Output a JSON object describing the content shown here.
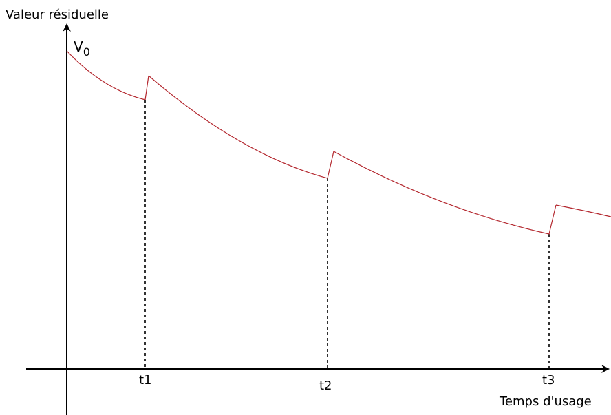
{
  "y_axis_label": "Valeur résiduelle",
  "x_axis_label": "Temps d'usage",
  "v0_label": {
    "main": "V",
    "sub": "0"
  },
  "ticks": [
    {
      "label": "t1"
    },
    {
      "label": "t2"
    },
    {
      "label": "t3"
    }
  ],
  "colors": {
    "curve": "#b3262d",
    "axes": "#000000"
  }
}
